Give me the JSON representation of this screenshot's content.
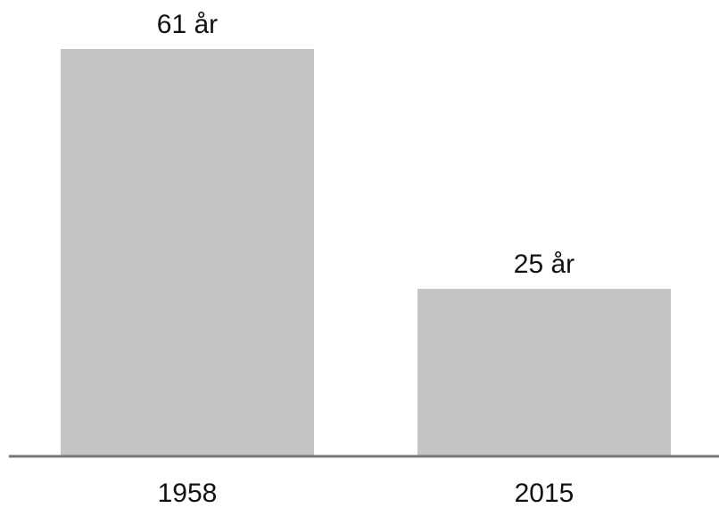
{
  "chart_data": {
    "type": "bar",
    "categories": [
      "1958",
      "2015"
    ],
    "values": [
      61,
      25
    ],
    "value_labels": [
      "61 år",
      "25 år"
    ],
    "color": "#c4c4c4"
  }
}
